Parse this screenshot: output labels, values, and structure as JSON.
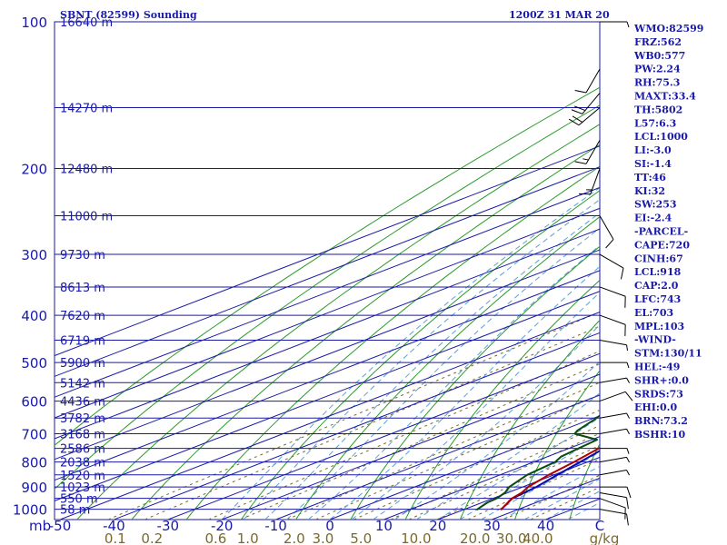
{
  "header": {
    "title": "SBNT (82599) Sounding",
    "time": "1200Z 31 MAR 20"
  },
  "indices": [
    "WMO:82599",
    "FRZ:562",
    "WB0:577",
    "PW:2.24",
    "RH:75.3",
    "MAXT:33.4",
    "TH:5802",
    "L57:6.3",
    "LCL:1000",
    "LI:-3.0",
    "SI:-1.4",
    "TT:46",
    "KI:32",
    "SW:253",
    "EI:-2.4",
    "-PARCEL-",
    "CAPE:720",
    "CINH:67",
    "LCL:918",
    "CAP:2.0",
    "LFC:743",
    "EL:703",
    "MPL:103",
    "-WIND-",
    "STM:130/11",
    "HEL:-49",
    "SHR+:0.0",
    "SRDS:73",
    "EHI:0.0",
    "BRN:73.2",
    "BSHR:10"
  ],
  "colors": {
    "isobar": "#1a1aa8",
    "isotherm": "#1a1aa8",
    "dry_adiabat": "#2a9a2a",
    "moist_adiabat": "#5aa0d8",
    "mixing_ratio": "#7a6a2a",
    "temperature": "#b00000",
    "dewpoint": "#0a4a0a",
    "parcel": "#0a0aa8"
  },
  "chart_data": {
    "type": "line",
    "title": "SBNT (82599) Sounding",
    "x_unit": "C",
    "y_unit": "mb",
    "pressure_levels": [
      100,
      200,
      300,
      400,
      500,
      600,
      700,
      800,
      900,
      1000
    ],
    "pressure_tick_labels": [
      "100",
      "200",
      "300",
      "400",
      "500",
      "600",
      "700",
      "800",
      "900",
      "1000"
    ],
    "pressure_unit_label": "mb",
    "temperature_ticks": [
      -50,
      -40,
      -30,
      -20,
      -10,
      0,
      10,
      20,
      30,
      40,
      50
    ],
    "temperature_tick_labels": [
      "-50",
      "-40",
      "-30",
      "-20",
      "-10",
      "0",
      "10",
      "20",
      "30",
      "40",
      "C"
    ],
    "mixing_ratio_labels": [
      "0.1",
      "0.2",
      "0.6",
      "1.0",
      "2.0",
      "3.0",
      "5.0",
      "10.0",
      "20.0",
      "30.0",
      "40.0",
      "g/kg"
    ],
    "height_labels": [
      {
        "p": 100,
        "text": "16640 m"
      },
      {
        "p": 150,
        "text": "14270 m"
      },
      {
        "p": 200,
        "text": "12480 m"
      },
      {
        "p": 250,
        "text": "11000 m"
      },
      {
        "p": 300,
        "text": "9730 m"
      },
      {
        "p": 350,
        "text": "8613 m"
      },
      {
        "p": 400,
        "text": "7620 m"
      },
      {
        "p": 450,
        "text": "6719 m"
      },
      {
        "p": 500,
        "text": "5900 m"
      },
      {
        "p": 550,
        "text": "5142 m"
      },
      {
        "p": 600,
        "text": "4436 m"
      },
      {
        "p": 650,
        "text": "3782 m"
      },
      {
        "p": 700,
        "text": "3168 m"
      },
      {
        "p": 750,
        "text": "2586 m"
      },
      {
        "p": 800,
        "text": "2038 m"
      },
      {
        "p": 850,
        "text": "1520 m"
      },
      {
        "p": 900,
        "text": "1023 m"
      },
      {
        "p": 950,
        "text": "550 m"
      },
      {
        "p": 1000,
        "text": "58 m"
      }
    ],
    "temperature_profile": [
      [
        1003,
        27.0
      ],
      [
        950,
        23.5
      ],
      [
        925,
        22.6
      ],
      [
        900,
        21.0
      ],
      [
        850,
        19.0
      ],
      [
        800,
        17.5
      ],
      [
        750,
        15.5
      ],
      [
        700,
        12.5
      ],
      [
        650,
        8.5
      ],
      [
        600,
        4.4
      ],
      [
        550,
        0.4
      ],
      [
        500,
        -4.0
      ],
      [
        470,
        -6.0
      ],
      [
        450,
        -8.5
      ],
      [
        430,
        -10.5
      ],
      [
        400,
        -13.5
      ],
      [
        370,
        -17.0
      ],
      [
        350,
        -19.5
      ],
      [
        300,
        -28.0
      ],
      [
        250,
        -38.0
      ],
      [
        200,
        -49.5
      ],
      [
        175,
        -56.0
      ],
      [
        150,
        -64.5
      ],
      [
        125,
        -71.0
      ],
      [
        100,
        -79.0
      ]
    ],
    "dewpoint_profile": [
      [
        1003,
        22.5
      ],
      [
        970,
        21.0
      ],
      [
        950,
        20.7
      ],
      [
        925,
        19.5
      ],
      [
        900,
        17.5
      ],
      [
        850,
        15.0
      ],
      [
        800,
        14.0
      ],
      [
        780,
        12.5
      ],
      [
        740,
        11.5
      ],
      [
        720,
        11.0
      ],
      [
        700,
        4.0
      ],
      [
        690,
        3.0
      ],
      [
        650,
        0.5
      ],
      [
        600,
        -3.5
      ],
      [
        550,
        -7.0
      ],
      [
        510,
        -9.0
      ],
      [
        505,
        -20.5
      ],
      [
        480,
        -13.0
      ],
      [
        460,
        -14.0
      ],
      [
        440,
        -17.0
      ],
      [
        420,
        -24.5
      ],
      [
        400,
        -28.5
      ],
      [
        380,
        -22.5
      ],
      [
        370,
        -26.0
      ],
      [
        355,
        -29.5
      ],
      [
        345,
        -30.5
      ],
      [
        330,
        -33.5
      ],
      [
        300,
        -37.5
      ],
      [
        250,
        -47.0
      ],
      [
        200,
        -63.0
      ],
      [
        175,
        -68.0
      ],
      [
        160,
        -80.5
      ],
      [
        150,
        -86.5
      ],
      [
        100,
        -84.0
      ]
    ],
    "parcel_profile": [
      [
        1003,
        27.0
      ],
      [
        950,
        23.6
      ],
      [
        900,
        22.5
      ],
      [
        850,
        20.6
      ],
      [
        800,
        18.6
      ],
      [
        750,
        16.5
      ],
      [
        700,
        14.0
      ],
      [
        650,
        11.2
      ],
      [
        600,
        8.0
      ],
      [
        550,
        4.5
      ],
      [
        500,
        0.3
      ],
      [
        450,
        -4.5
      ],
      [
        400,
        -10.0
      ],
      [
        350,
        -17.0
      ],
      [
        300,
        -25.0
      ],
      [
        250,
        -35.5
      ],
      [
        200,
        -48.0
      ],
      [
        150,
        -64.0
      ],
      [
        105,
        -81.0
      ]
    ],
    "wind_barbs": [
      {
        "p": 1000,
        "dir": 100,
        "spd": 10
      },
      {
        "p": 950,
        "dir": 110,
        "spd": 10
      },
      {
        "p": 925,
        "dir": 100,
        "spd": 10
      },
      {
        "p": 900,
        "dir": 90,
        "spd": 10
      },
      {
        "p": 850,
        "dir": 80,
        "spd": 5
      },
      {
        "p": 800,
        "dir": 80,
        "spd": 5
      },
      {
        "p": 750,
        "dir": 90,
        "spd": 5
      },
      {
        "p": 700,
        "dir": 80,
        "spd": 5
      },
      {
        "p": 650,
        "dir": 80,
        "spd": 5
      },
      {
        "p": 600,
        "dir": 70,
        "spd": 10
      },
      {
        "p": 550,
        "dir": 80,
        "spd": 5
      },
      {
        "p": 500,
        "dir": 90,
        "spd": 5
      },
      {
        "p": 450,
        "dir": 100,
        "spd": 5
      },
      {
        "p": 400,
        "dir": 110,
        "spd": 10
      },
      {
        "p": 350,
        "dir": 110,
        "spd": 10
      },
      {
        "p": 300,
        "dir": 120,
        "spd": 10
      },
      {
        "p": 250,
        "dir": 150,
        "spd": 10
      },
      {
        "p": 200,
        "dir": 200,
        "spd": 15
      },
      {
        "p": 175,
        "dir": 210,
        "spd": 15
      },
      {
        "p": 150,
        "dir": 230,
        "spd": 20
      },
      {
        "p": 140,
        "dir": 220,
        "spd": 20
      },
      {
        "p": 125,
        "dir": 210,
        "spd": 10
      },
      {
        "p": 100,
        "dir": 90,
        "spd": 5
      }
    ]
  }
}
